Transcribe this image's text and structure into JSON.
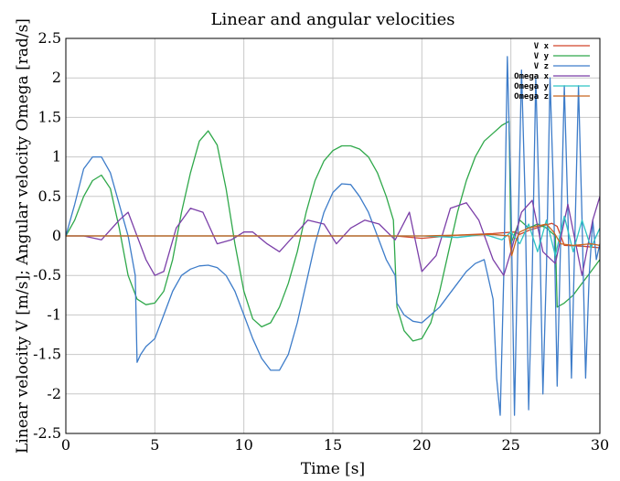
{
  "chart_data": {
    "type": "line",
    "title": "Linear and angular velocities",
    "xlabel": "Time [s]",
    "ylabel": "Linear velocity V [m/s]; Angular velocity Omega [rad/s]",
    "xlim": [
      0,
      30
    ],
    "ylim": [
      -2.5,
      2.5
    ],
    "xticks": [
      "0",
      "5",
      "10",
      "15",
      "20",
      "25",
      "30"
    ],
    "yticks": [
      "-2.5",
      "-2",
      "-1.5",
      "-1",
      "-0.5",
      "0",
      "0.5",
      "1",
      "1.5",
      "2",
      "2.5"
    ],
    "grid": true,
    "legend_position": "top-right",
    "series": [
      {
        "name": "V x",
        "color": "#d2452a",
        "x": [
          0,
          5,
          10,
          15,
          18.5,
          20,
          22,
          24,
          25.2,
          25.5,
          26,
          27,
          27.3,
          27.6,
          28,
          29,
          30
        ],
        "y": [
          0,
          0,
          0,
          0,
          0,
          -0.03,
          0.01,
          0.03,
          0.05,
          0.02,
          0.07,
          0.14,
          0.16,
          0.12,
          -0.12,
          -0.13,
          -0.15
        ]
      },
      {
        "name": "V y",
        "color": "#2fa84a",
        "x": [
          0,
          0.5,
          1.0,
          1.5,
          2.0,
          2.5,
          3.0,
          3.5,
          4.0,
          4.5,
          5.0,
          5.5,
          6.0,
          6.5,
          7.0,
          7.5,
          8.0,
          8.5,
          9.0,
          9.5,
          10.0,
          10.5,
          11.0,
          11.5,
          12.0,
          12.5,
          13.0,
          13.5,
          14.0,
          14.5,
          15.0,
          15.5,
          16.0,
          16.5,
          17.0,
          17.5,
          18.0,
          18.4,
          18.6,
          19.0,
          19.5,
          20.0,
          20.5,
          21.0,
          21.5,
          22.0,
          22.5,
          23.0,
          23.5,
          24.0,
          24.5,
          24.9,
          25.0,
          25.5,
          26.0,
          26.5,
          27.0,
          27.5,
          27.6,
          28.0,
          28.5,
          29.0,
          29.5,
          30.0
        ],
        "y": [
          0.0,
          0.2,
          0.5,
          0.7,
          0.77,
          0.6,
          0.1,
          -0.5,
          -0.8,
          -0.87,
          -0.85,
          -0.7,
          -0.3,
          0.3,
          0.8,
          1.2,
          1.33,
          1.15,
          0.6,
          -0.1,
          -0.7,
          -1.05,
          -1.15,
          -1.1,
          -0.9,
          -0.6,
          -0.2,
          0.3,
          0.7,
          0.95,
          1.08,
          1.14,
          1.14,
          1.1,
          1.0,
          0.8,
          0.5,
          0.2,
          -0.9,
          -1.2,
          -1.33,
          -1.3,
          -1.1,
          -0.7,
          -0.2,
          0.3,
          0.7,
          1.0,
          1.2,
          1.3,
          1.4,
          1.45,
          -0.1,
          0.2,
          0.1,
          0.15,
          0.1,
          0.0,
          -0.9,
          -0.85,
          -0.75,
          -0.6,
          -0.45,
          -0.3
        ]
      },
      {
        "name": "V z",
        "color": "#3d7cc9",
        "x": [
          0,
          0.5,
          1.0,
          1.5,
          2.0,
          2.5,
          3.0,
          3.5,
          3.9,
          4.0,
          4.2,
          4.5,
          5.0,
          5.5,
          6.0,
          6.5,
          7.0,
          7.5,
          8.0,
          8.5,
          9.0,
          9.5,
          10.0,
          10.5,
          11.0,
          11.5,
          12.0,
          12.5,
          13.0,
          13.5,
          14.0,
          14.5,
          15.0,
          15.5,
          16.0,
          16.5,
          17.0,
          17.5,
          18.0,
          18.5,
          18.6,
          19.0,
          19.5,
          20.0,
          20.5,
          21.0,
          21.5,
          22.0,
          22.5,
          23.0,
          23.5,
          24.0,
          24.2,
          24.4,
          24.6,
          24.8,
          25.0,
          25.2,
          25.4,
          25.6,
          25.8,
          26.0,
          26.2,
          26.4,
          26.6,
          26.8,
          27.0,
          27.2,
          27.4,
          27.6,
          27.8,
          28.0,
          28.2,
          28.4,
          28.6,
          28.8,
          29.0,
          29.2,
          29.4,
          29.6,
          29.8,
          30.0
        ],
        "y": [
          0.0,
          0.4,
          0.85,
          1.0,
          1.0,
          0.8,
          0.4,
          0.0,
          -0.5,
          -1.6,
          -1.5,
          -1.4,
          -1.3,
          -1.0,
          -0.7,
          -0.5,
          -0.42,
          -0.38,
          -0.37,
          -0.4,
          -0.5,
          -0.7,
          -1.0,
          -1.3,
          -1.55,
          -1.7,
          -1.7,
          -1.5,
          -1.1,
          -0.6,
          -0.1,
          0.3,
          0.55,
          0.66,
          0.65,
          0.5,
          0.3,
          0.0,
          -0.3,
          -0.5,
          -0.85,
          -1.0,
          -1.08,
          -1.1,
          -1.0,
          -0.9,
          -0.75,
          -0.6,
          -0.45,
          -0.35,
          -0.3,
          -0.8,
          -1.8,
          -2.27,
          -0.5,
          2.27,
          0.5,
          -2.27,
          0.0,
          2.1,
          0.5,
          -2.2,
          -0.5,
          2.0,
          0.3,
          -2.0,
          -0.4,
          2.0,
          0.5,
          -1.9,
          0.0,
          1.9,
          0.3,
          -1.8,
          0.0,
          1.9,
          0.2,
          -1.8,
          -0.5,
          0.2,
          -0.3,
          -0.1
        ]
      },
      {
        "name": "Omega x",
        "color": "#7b3fa8",
        "x": [
          0,
          1.0,
          2.0,
          3.0,
          3.5,
          4.5,
          5.0,
          5.5,
          6.2,
          7.0,
          7.7,
          8.5,
          9.3,
          10.0,
          10.5,
          11.3,
          12.0,
          12.8,
          13.6,
          14.5,
          15.2,
          16.0,
          16.8,
          17.6,
          18.5,
          19.3,
          20.0,
          20.8,
          21.6,
          22.5,
          23.2,
          24.0,
          24.6,
          25.0,
          25.6,
          26.2,
          26.8,
          27.5,
          28.2,
          29.0,
          29.6,
          30.0
        ],
        "y": [
          0.0,
          0.0,
          -0.05,
          0.2,
          0.3,
          -0.3,
          -0.5,
          -0.45,
          0.1,
          0.35,
          0.3,
          -0.1,
          -0.05,
          0.05,
          0.05,
          -0.1,
          -0.2,
          0.0,
          0.2,
          0.15,
          -0.1,
          0.1,
          0.2,
          0.15,
          -0.05,
          0.3,
          -0.45,
          -0.25,
          0.35,
          0.42,
          0.2,
          -0.3,
          -0.5,
          -0.2,
          0.3,
          0.45,
          -0.2,
          -0.35,
          0.4,
          -0.5,
          0.2,
          0.5
        ]
      },
      {
        "name": "Omega y",
        "color": "#2ec4c4",
        "x": [
          0,
          5,
          10,
          15,
          20,
          22,
          23.5,
          24.5,
          25.0,
          25.5,
          26.0,
          26.5,
          27.0,
          27.5,
          28.0,
          28.5,
          29.0,
          29.5,
          30.0
        ],
        "y": [
          0.0,
          0.0,
          0.0,
          0.0,
          0.0,
          -0.02,
          0.02,
          -0.05,
          0.05,
          -0.1,
          0.15,
          -0.2,
          0.2,
          -0.25,
          0.25,
          -0.2,
          0.2,
          -0.15,
          0.1
        ]
      },
      {
        "name": "Omega z",
        "color": "#c8651f",
        "x": [
          0,
          5,
          10,
          15,
          20,
          24,
          24.9,
          25.05,
          25.3,
          25.5,
          26,
          27,
          27.4,
          27.8,
          28.5,
          29.5,
          30
        ],
        "y": [
          0.0,
          0.0,
          0.0,
          0.0,
          0.0,
          0.02,
          0.0,
          -0.25,
          -0.05,
          0.05,
          0.1,
          0.15,
          0.05,
          -0.1,
          -0.12,
          -0.1,
          -0.12
        ]
      }
    ]
  }
}
